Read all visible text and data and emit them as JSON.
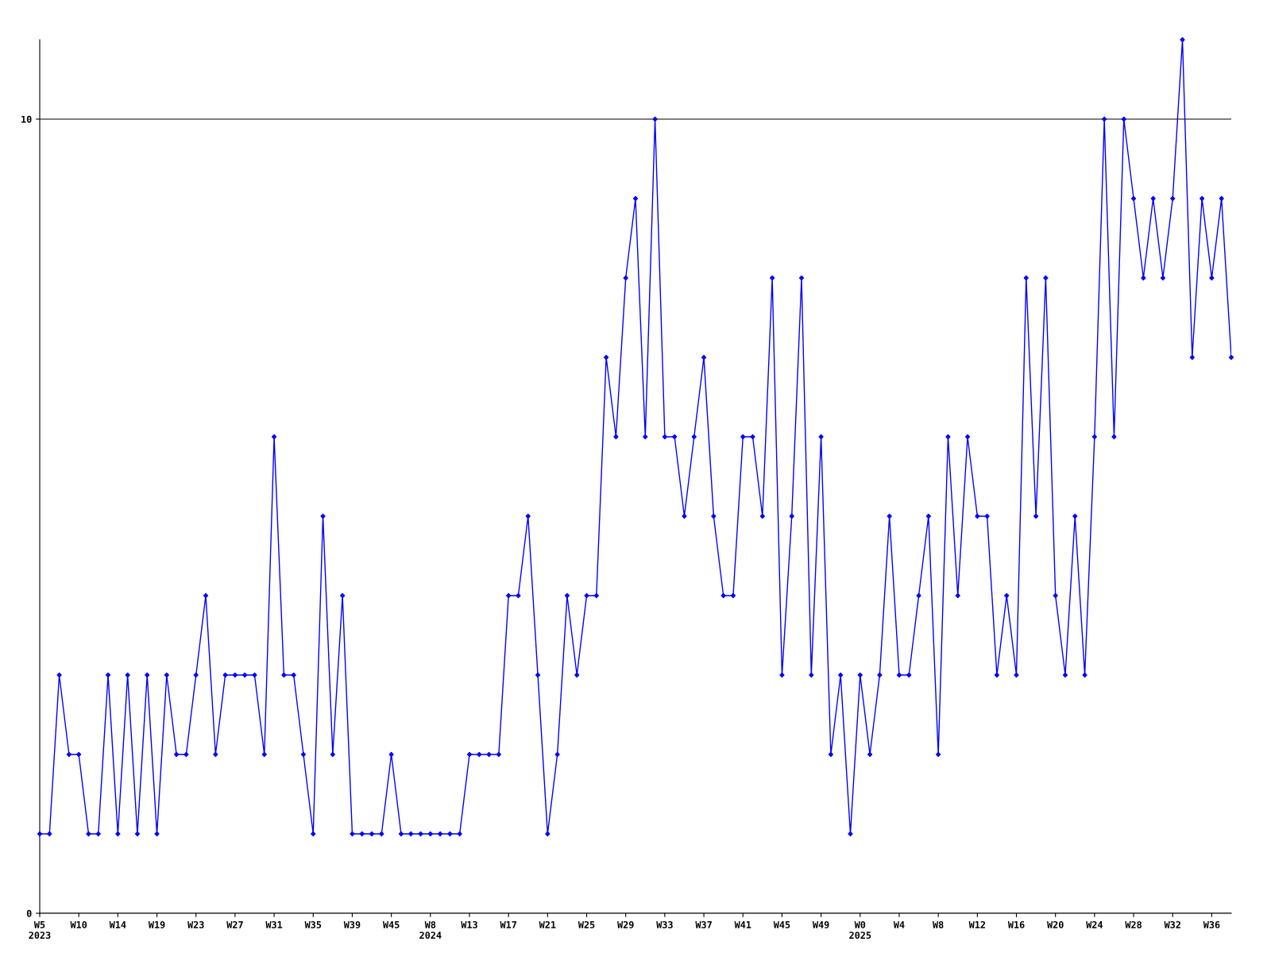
{
  "chart_data": {
    "type": "line",
    "categories": [
      "W5\n2023",
      null,
      null,
      null,
      "W10",
      null,
      null,
      null,
      "W14",
      null,
      null,
      null,
      "W19",
      null,
      null,
      null,
      "W23",
      null,
      null,
      null,
      "W27",
      null,
      null,
      null,
      "W31",
      null,
      null,
      null,
      "W35",
      null,
      null,
      null,
      "W39",
      null,
      null,
      null,
      "W45",
      null,
      null,
      null,
      "W8\n2024",
      null,
      null,
      null,
      "W13",
      null,
      null,
      null,
      "W17",
      null,
      null,
      null,
      "W21",
      null,
      null,
      null,
      "W25",
      null,
      null,
      null,
      "W29",
      null,
      null,
      null,
      "W33",
      null,
      null,
      null,
      "W37",
      null,
      null,
      null,
      "W41",
      null,
      null,
      null,
      "W45",
      null,
      null,
      null,
      "W49",
      null,
      null,
      null,
      "W0\n2025",
      null,
      null,
      null,
      "W4",
      null,
      null,
      null,
      "W8",
      null,
      null,
      null,
      "W12",
      null,
      null,
      null,
      "W16",
      null,
      null,
      null,
      "W20",
      null,
      null,
      null,
      "W24",
      null,
      null,
      null,
      "W28",
      null,
      null,
      null,
      "W32",
      null,
      null,
      null,
      "W36",
      null,
      null
    ],
    "series": [
      {
        "color": "#0000ff",
        "values": [
          1,
          1,
          3,
          2,
          2,
          1,
          1,
          3,
          1,
          3,
          1,
          3,
          1,
          3,
          2,
          2,
          3,
          4,
          2,
          3,
          3,
          3,
          3,
          2,
          6,
          3,
          3,
          2,
          1,
          5,
          2,
          4,
          1,
          1,
          1,
          1,
          2,
          1,
          1,
          1,
          1,
          1,
          1,
          1,
          2,
          2,
          2,
          2,
          4,
          4,
          5,
          3,
          1,
          2,
          4,
          3,
          4,
          4,
          7,
          6,
          8,
          9,
          6,
          10,
          6,
          6,
          5,
          6,
          7,
          5,
          4,
          4,
          6,
          6,
          5,
          8,
          3,
          5,
          8,
          3,
          6,
          2,
          3,
          1,
          3,
          2,
          3,
          5,
          3,
          3,
          4,
          5,
          2,
          6,
          4,
          6,
          5,
          5,
          3,
          4,
          3,
          8,
          5,
          8,
          4,
          3,
          5,
          3,
          6,
          10,
          6,
          10,
          9,
          8,
          9,
          8,
          9,
          11,
          7,
          9,
          8,
          9,
          7
        ]
      }
    ],
    "ylim": [
      0,
      11
    ],
    "yticks": [
      0,
      10
    ],
    "grid": "y",
    "marker": "diamond",
    "line_style": "solid",
    "legend": false
  }
}
